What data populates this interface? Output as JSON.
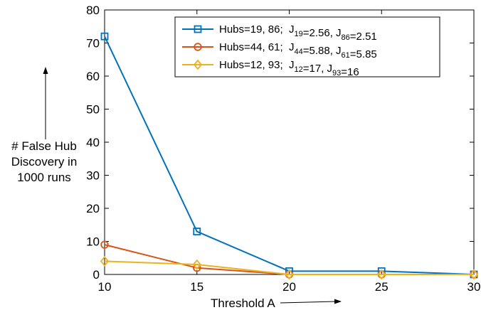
{
  "chart_data": {
    "type": "line",
    "xlabel": "Threshold A",
    "ylabel_lines": [
      "# False Hub",
      "Discovery in",
      "1000 runs"
    ],
    "xlim": [
      10,
      30
    ],
    "ylim": [
      0,
      80
    ],
    "x_ticks": [
      10,
      15,
      20,
      25,
      30
    ],
    "y_ticks": [
      0,
      10,
      20,
      30,
      40,
      50,
      60,
      70,
      80
    ],
    "grid": false,
    "legend_position": "top-right",
    "x": [
      10,
      15,
      20,
      25,
      30
    ],
    "series": [
      {
        "name": "Hubs=19, 86;  J19=2.56, J86=2.51",
        "legend_parts": {
          "hubs": "Hubs=19, 86;",
          "j1": "J",
          "j1_sub": "19",
          "j1_val": "=2.56,",
          "j2": "J",
          "j2_sub": "86",
          "j2_val": "=2.51"
        },
        "color": "#0072BD",
        "marker": "square",
        "values": [
          72,
          13,
          1,
          1,
          0
        ]
      },
      {
        "name": "Hubs=44, 61;  J44=5.88, J61=5.85",
        "legend_parts": {
          "hubs": "Hubs=44, 61;",
          "j1": "J",
          "j1_sub": "44",
          "j1_val": "=5.88,",
          "j2": "J",
          "j2_sub": "61",
          "j2_val": "=5.85"
        },
        "color": "#D95319",
        "marker": "circle",
        "values": [
          9,
          2,
          0,
          0,
          0
        ]
      },
      {
        "name": "Hubs=12, 93;  J12=17, J93=16",
        "legend_parts": {
          "hubs": "Hubs=12, 93;",
          "j1": "J",
          "j1_sub": "12",
          "j1_val": "=17,",
          "j2": "J",
          "j2_sub": "93",
          "j2_val": "=16"
        },
        "color": "#EDB120",
        "marker": "diamond",
        "values": [
          4,
          3,
          0,
          0,
          0
        ]
      }
    ]
  }
}
